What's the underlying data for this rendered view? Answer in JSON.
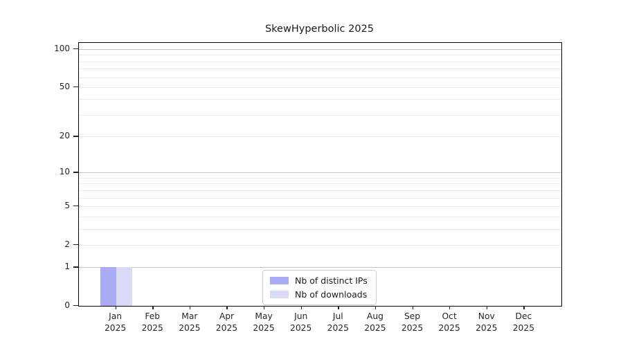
{
  "figure": {
    "background": "#ffffff"
  },
  "chart_data": {
    "type": "bar",
    "title": "SkewHyperbolic 2025",
    "categories": [
      "Jan",
      "Feb",
      "Mar",
      "Apr",
      "May",
      "Jun",
      "Jul",
      "Aug",
      "Sep",
      "Oct",
      "Nov",
      "Dec"
    ],
    "year_label": "2025",
    "series": [
      {
        "name": "Nb of distinct IPs",
        "color": "#aaaaf5",
        "values": [
          1,
          0,
          0,
          0,
          0,
          0,
          0,
          0,
          0,
          0,
          0,
          0
        ]
      },
      {
        "name": "Nb of downloads",
        "color": "#d9d9f8",
        "values": [
          1,
          0,
          0,
          0,
          0,
          0,
          0,
          0,
          0,
          0,
          0,
          0
        ]
      }
    ],
    "yscale": "log1p",
    "ylim": [
      0,
      100
    ],
    "yticks": [
      0,
      1,
      2,
      5,
      10,
      20,
      50,
      100
    ],
    "major_gridlines": [
      1,
      10,
      100
    ],
    "minor_gridlines": [
      2,
      3,
      4,
      5,
      6,
      7,
      8,
      9,
      20,
      30,
      40,
      50,
      60,
      70,
      80,
      90
    ],
    "grid": true,
    "xlabel": "",
    "ylabel": "",
    "legend": {
      "position": "bottom-center",
      "labels": [
        "Nb of distinct IPs",
        "Nb of downloads"
      ]
    }
  },
  "colors": {
    "axis": "#000000",
    "tick_text": "#262626",
    "major_grid": "#c2c2c2",
    "minor_grid": "#ebebeb",
    "legend_border": "#cccccc"
  }
}
